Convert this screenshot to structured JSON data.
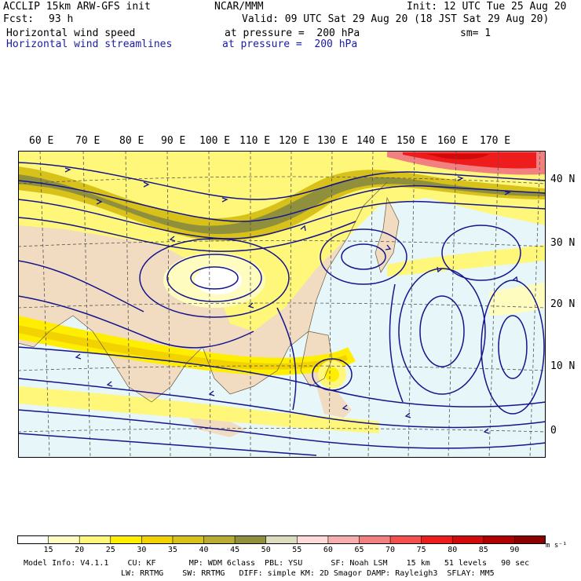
{
  "header": {
    "model": "ACCLIP 15km ARW-GFS init",
    "org": "NCAR/MMM",
    "init": "Init: 12 UTC Tue 25 Aug 20",
    "fcst_label": "Fcst:",
    "fcst_value": "93 h",
    "valid": "Valid: 09 UTC Sat 29 Aug 20 (18 JST Sat 29 Aug 20)",
    "field1": "Horizontal wind speed",
    "field1_level": "at pressure =  200 hPa",
    "field1_sm": "sm= 1",
    "field2": "Horizontal wind streamlines",
    "field2_level": "at pressure =  200 hPa"
  },
  "map": {
    "lon_labels": [
      "60 E",
      "70 E",
      "80 E",
      "90 E",
      "100 E",
      "110 E",
      "120 E",
      "130 E",
      "140 E",
      "150 E",
      "160 E",
      "170 E"
    ],
    "lat_labels": [
      "40 N",
      "30 N",
      "20 N",
      "10 N",
      "0"
    ]
  },
  "colorbar": {
    "labels": [
      "15",
      "20",
      "25",
      "30",
      "35",
      "40",
      "45",
      "50",
      "55",
      "60",
      "65",
      "70",
      "75",
      "80",
      "85",
      "90"
    ],
    "unit": "m s⁻¹",
    "colors": [
      "#ffffff",
      "#fefcbe",
      "#fff77a",
      "#ffee00",
      "#f2d200",
      "#d8c21a",
      "#b8ad32",
      "#8f8f3c",
      "#dcdcbe",
      "#ffdada",
      "#f7aeae",
      "#f28080",
      "#f54e4e",
      "#ee1c1c",
      "#d20a0a",
      "#b00000",
      "#8a0000"
    ]
  },
  "footer": {
    "line1": "Model Info: V4.1.1    CU: KF       MP: WDM 6class  PBL: YSU      SF: Noah LSM    15 km   51 levels   90 sec",
    "line2": "LW: RRTMG    SW: RRTMG   DIFF: simple KM: 2D Smagor DAMP: Rayleigh3  SFLAY: MM5"
  }
}
